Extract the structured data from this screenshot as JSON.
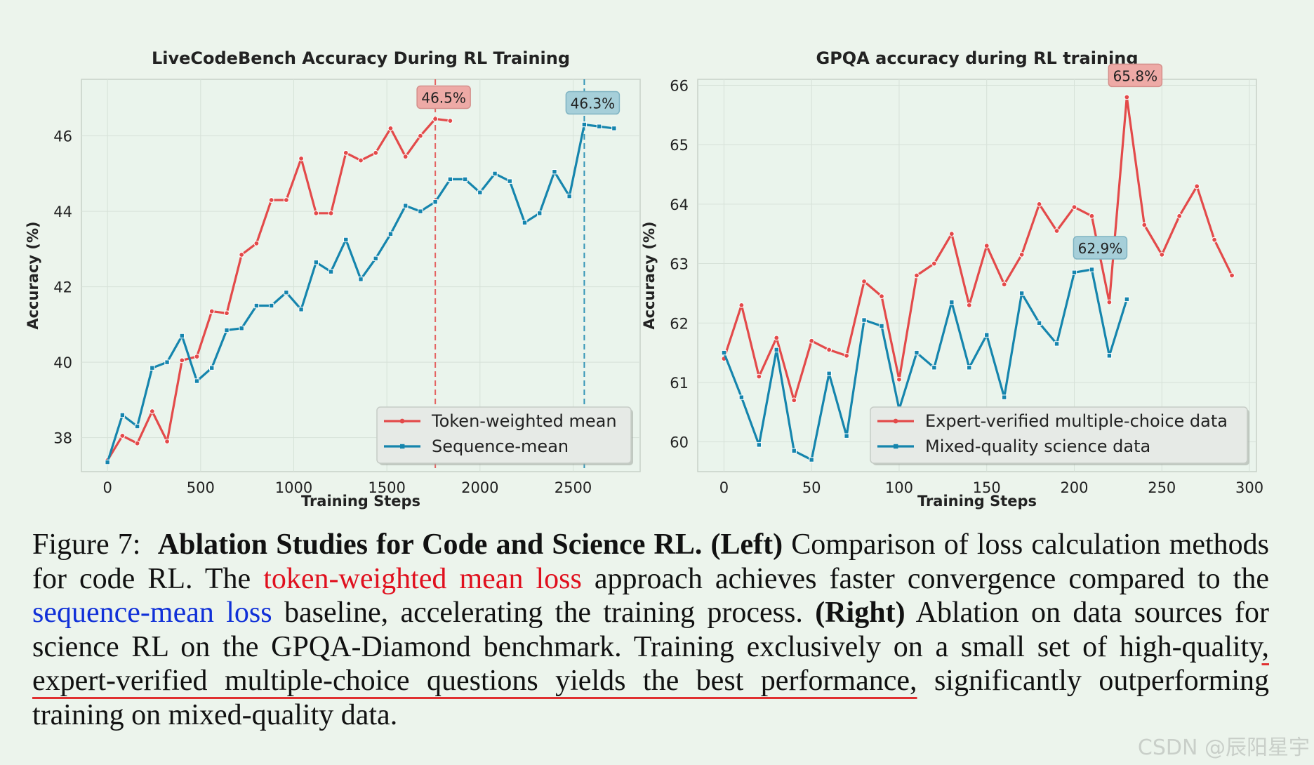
{
  "chart_data": [
    {
      "type": "line",
      "title": "LiveCodeBench Accuracy During RL Training",
      "xlabel": "Training Steps",
      "ylabel": "Accuracy (%)",
      "xlim": [
        -140,
        2860
      ],
      "ylim": [
        37.1,
        47.5
      ],
      "xticks": [
        0,
        500,
        1000,
        1500,
        2000,
        2500
      ],
      "yticks": [
        38,
        40,
        42,
        44,
        46
      ],
      "grid": true,
      "legend_position": "lower-right",
      "series": [
        {
          "name": "Token-weighted mean",
          "color": "#e34a4a",
          "marker": "circle",
          "x": [
            0,
            80,
            160,
            240,
            320,
            400,
            480,
            560,
            640,
            720,
            800,
            880,
            960,
            1040,
            1120,
            1200,
            1280,
            1360,
            1440,
            1520,
            1600,
            1680,
            1760,
            1840
          ],
          "y": [
            37.4,
            38.05,
            37.85,
            38.7,
            37.9,
            40.05,
            40.15,
            41.35,
            41.3,
            42.85,
            43.15,
            44.3,
            44.3,
            45.4,
            43.95,
            43.95,
            45.55,
            45.35,
            45.55,
            46.2,
            45.45,
            46.0,
            46.45,
            46.4
          ]
        },
        {
          "name": "Sequence-mean",
          "color": "#1585ad",
          "marker": "square",
          "x": [
            0,
            80,
            160,
            240,
            320,
            400,
            480,
            560,
            640,
            720,
            800,
            880,
            960,
            1040,
            1120,
            1200,
            1280,
            1360,
            1440,
            1520,
            1600,
            1680,
            1760,
            1840,
            1920,
            2000,
            2080,
            2160,
            2240,
            2320,
            2400,
            2480,
            2560,
            2640,
            2720
          ],
          "y": [
            37.35,
            38.6,
            38.3,
            39.85,
            40.0,
            40.7,
            39.5,
            39.85,
            40.85,
            40.9,
            41.5,
            41.5,
            41.85,
            41.4,
            42.65,
            42.4,
            43.25,
            42.2,
            42.75,
            43.4,
            44.15,
            44.0,
            44.25,
            44.85,
            44.85,
            44.5,
            45.0,
            44.8,
            43.7,
            43.95,
            45.05,
            44.4,
            46.3,
            46.25,
            46.2
          ]
        }
      ],
      "annotations": [
        {
          "text": "46.5%",
          "series": 0,
          "x": 1760,
          "vline": true
        },
        {
          "text": "46.3%",
          "series": 1,
          "x": 2560,
          "vline": true
        }
      ]
    },
    {
      "type": "line",
      "title": "GPQA accuracy during RL training",
      "xlabel": "Training Steps",
      "ylabel": "Accuracy (%)",
      "xlim": [
        -15,
        304
      ],
      "ylim": [
        59.5,
        66.1
      ],
      "xticks": [
        0,
        50,
        100,
        150,
        200,
        250,
        300
      ],
      "yticks": [
        60,
        61,
        62,
        63,
        64,
        65,
        66
      ],
      "grid": true,
      "legend_position": "lower-right",
      "series": [
        {
          "name": "Expert-verified multiple-choice data",
          "color": "#e34a4a",
          "marker": "circle",
          "x": [
            0,
            10,
            20,
            30,
            40,
            50,
            60,
            70,
            80,
            90,
            100,
            110,
            120,
            130,
            140,
            150,
            160,
            170,
            180,
            190,
            200,
            210,
            220,
            230,
            240,
            250,
            260,
            270,
            280,
            290
          ],
          "y": [
            61.4,
            62.3,
            61.1,
            61.75,
            60.7,
            61.7,
            61.55,
            61.45,
            62.7,
            62.45,
            61.05,
            62.8,
            63.0,
            63.5,
            62.3,
            63.3,
            62.65,
            63.15,
            64.0,
            63.55,
            63.95,
            63.8,
            62.35,
            65.8,
            63.65,
            63.15,
            63.8,
            64.3,
            63.4,
            62.8
          ]
        },
        {
          "name": "Mixed-quality science data",
          "color": "#1585ad",
          "marker": "square",
          "x": [
            0,
            10,
            20,
            30,
            40,
            50,
            60,
            70,
            80,
            90,
            100,
            110,
            120,
            130,
            140,
            150,
            160,
            170,
            180,
            190,
            200,
            210,
            220,
            230
          ],
          "y": [
            61.5,
            60.75,
            59.95,
            61.55,
            59.85,
            59.7,
            61.15,
            60.1,
            62.05,
            61.95,
            60.55,
            61.5,
            61.25,
            62.35,
            61.25,
            61.8,
            60.75,
            62.5,
            62.0,
            61.65,
            62.85,
            62.9,
            61.45,
            62.4
          ]
        }
      ],
      "annotations": [
        {
          "text": "65.8%",
          "series": 0,
          "x": 230,
          "vline": false
        },
        {
          "text": "62.9%",
          "series": 1,
          "x": 210,
          "vline": false
        }
      ]
    }
  ],
  "caption": {
    "label": "Figure 7:",
    "bold_title": "Ablation Studies for Code and Science RL. (Left)",
    "t1": " Comparison of loss calculation methods for code RL. The ",
    "red_text": "token-weighted mean loss",
    "t2": " approach achieves faster convergence compared to the ",
    "blue_text": "sequence-mean loss",
    "t3": " baseline, accelerating the training process. ",
    "bold_right": "(Right)",
    "t4": " Ablation on data sources for science RL on the GPQA-Diamond benchmark. Training exclusively on a small set of high-quality",
    "underlined": ", expert-verified multiple-choice questions yields the best performance,",
    "t5": " significantly outperforming training on mixed-quality data."
  },
  "watermark": "CSDN @辰阳星宇"
}
